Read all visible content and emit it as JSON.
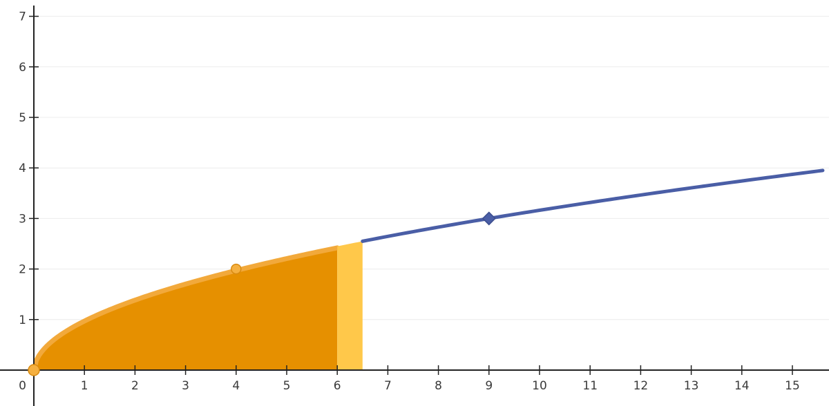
{
  "chart_data": {
    "type": "area",
    "title": "",
    "xlabel": "",
    "ylabel": "",
    "xlim": [
      0,
      15.65
    ],
    "ylim": [
      -0.7,
      7.15
    ],
    "origin_label": "0",
    "x_ticks": [
      1,
      2,
      3,
      4,
      5,
      6,
      7,
      8,
      9,
      10,
      11,
      12,
      13,
      14,
      15
    ],
    "x_tick_labels": [
      "1",
      "2",
      "3",
      "4",
      "5",
      "6",
      "7",
      "8",
      "9",
      "10",
      "11",
      "12",
      "13",
      "14",
      "15"
    ],
    "y_ticks": [
      1,
      2,
      3,
      4,
      5,
      6,
      7
    ],
    "y_tick_labels": [
      "1",
      "2",
      "3",
      "4",
      "5",
      "6",
      "7"
    ],
    "grid": true,
    "curve": {
      "x": [
        0,
        0.25,
        0.5,
        1,
        1.5,
        2,
        2.5,
        3,
        3.5,
        4,
        4.5,
        5,
        5.5,
        6,
        6.5,
        7,
        7.5,
        8,
        8.5,
        9,
        10,
        11,
        12,
        13,
        14,
        15,
        15.65
      ],
      "y": [
        0,
        0.5,
        0.71,
        1,
        1.22,
        1.41,
        1.58,
        1.73,
        1.87,
        2,
        2.12,
        2.24,
        2.35,
        2.45,
        2.55,
        2.65,
        2.74,
        2.83,
        2.92,
        3,
        3.16,
        3.32,
        3.46,
        3.61,
        3.74,
        3.87,
        3.96
      ]
    },
    "shaded_area": {
      "from": 0,
      "to": 6
    },
    "highlight_strip": {
      "from": 6,
      "to": 6.5
    },
    "points": [
      {
        "x": 0,
        "y": 0,
        "role": "start"
      },
      {
        "x": 4,
        "y": 2,
        "role": "marker"
      },
      {
        "x": 9,
        "y": 3,
        "role": "handle"
      }
    ],
    "colors": {
      "area": "#e69000",
      "area_edge": "#f2a93b",
      "strip": "#ffc84a",
      "curve": "#4a5ea6",
      "axis": "#222222",
      "grid": "#ececec",
      "marker": "#f5b040",
      "marker_stroke": "#d88a10"
    }
  }
}
